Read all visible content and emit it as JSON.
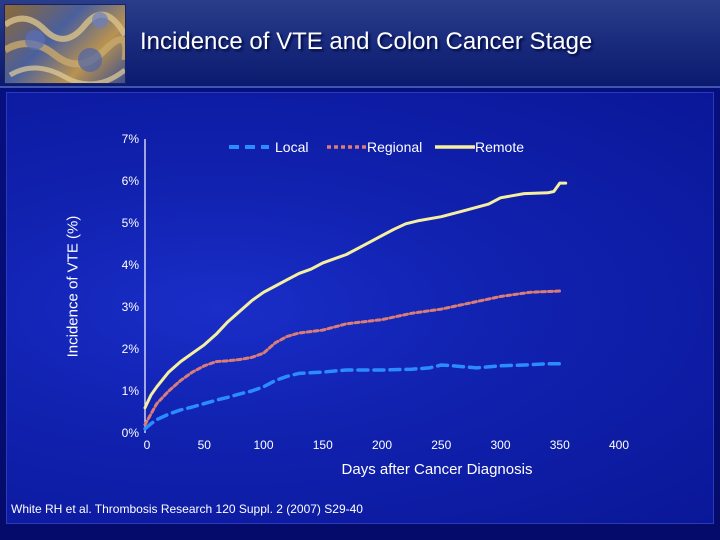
{
  "slide": {
    "title": "Incidence of VTE and Colon Cancer Stage",
    "source": "White RH et al. Thrombosis Research 120 Suppl. 2 (2007) S29-40"
  },
  "colors": {
    "local": "#2b8cff",
    "regional": "#d97d76",
    "remote": "#f5f0a0"
  },
  "chart_data": {
    "type": "line",
    "title": "Incidence of VTE and Colon Cancer Stage",
    "xlabel": "Days after Cancer Diagnosis",
    "ylabel": "Incidence of VTE (%)",
    "xlim": [
      0,
      400
    ],
    "ylim": [
      0,
      7
    ],
    "x_ticks": [
      "0",
      "50",
      "100",
      "150",
      "200",
      "250",
      "300",
      "350",
      "400"
    ],
    "y_ticks": [
      "0%",
      "1%",
      "2%",
      "3%",
      "4%",
      "5%",
      "6%",
      "7%"
    ],
    "legend_position": "top",
    "series": [
      {
        "name": "Local",
        "style": "dashed",
        "color": "#2b8cff",
        "x": [
          0,
          5,
          10,
          20,
          30,
          40,
          50,
          60,
          70,
          80,
          90,
          100,
          110,
          120,
          130,
          150,
          170,
          200,
          225,
          240,
          250,
          260,
          280,
          300,
          320,
          340,
          350
        ],
        "y": [
          0.1,
          0.22,
          0.32,
          0.45,
          0.55,
          0.62,
          0.7,
          0.78,
          0.85,
          0.93,
          1.0,
          1.1,
          1.25,
          1.35,
          1.42,
          1.45,
          1.5,
          1.5,
          1.52,
          1.55,
          1.62,
          1.6,
          1.55,
          1.6,
          1.62,
          1.65,
          1.65
        ]
      },
      {
        "name": "Regional",
        "style": "dotted",
        "color": "#d97d76",
        "x": [
          0,
          5,
          10,
          20,
          30,
          40,
          50,
          60,
          70,
          80,
          90,
          100,
          110,
          120,
          130,
          150,
          170,
          200,
          225,
          250,
          275,
          300,
          325,
          350
        ],
        "y": [
          0.2,
          0.45,
          0.7,
          1.0,
          1.25,
          1.45,
          1.6,
          1.7,
          1.72,
          1.75,
          1.8,
          1.9,
          2.15,
          2.3,
          2.38,
          2.45,
          2.6,
          2.7,
          2.85,
          2.95,
          3.1,
          3.25,
          3.35,
          3.38
        ]
      },
      {
        "name": "Remote",
        "style": "solid",
        "color": "#f5f0a0",
        "x": [
          0,
          5,
          10,
          20,
          30,
          40,
          50,
          60,
          70,
          80,
          90,
          100,
          110,
          120,
          130,
          140,
          150,
          160,
          170,
          180,
          190,
          200,
          210,
          220,
          230,
          250,
          270,
          290,
          300,
          310,
          320,
          340,
          345,
          350,
          355
        ],
        "y": [
          0.6,
          0.9,
          1.1,
          1.45,
          1.7,
          1.9,
          2.1,
          2.35,
          2.65,
          2.9,
          3.15,
          3.35,
          3.5,
          3.65,
          3.8,
          3.9,
          4.05,
          4.15,
          4.25,
          4.4,
          4.55,
          4.7,
          4.85,
          4.98,
          5.05,
          5.15,
          5.3,
          5.45,
          5.6,
          5.65,
          5.7,
          5.72,
          5.75,
          5.95,
          5.95
        ]
      }
    ]
  }
}
